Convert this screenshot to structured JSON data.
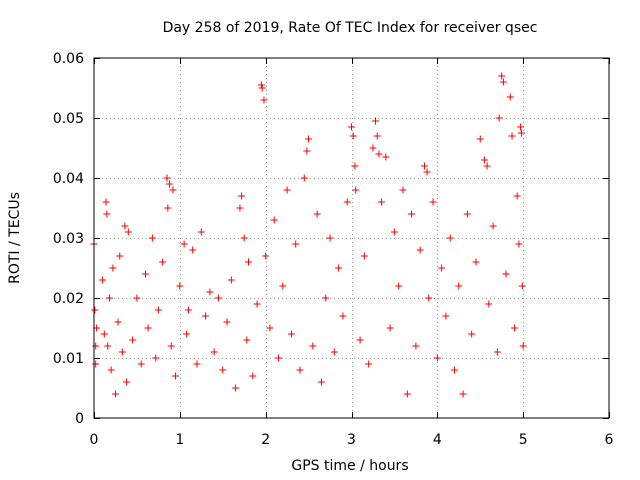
{
  "chart_data": {
    "type": "scatter",
    "title": "Day 258 of 2019, Rate Of TEC Index for receiver qsec",
    "xlabel": "GPS time / hours",
    "ylabel": "ROTI / TECUs",
    "xlim": [
      0,
      6
    ],
    "ylim": [
      0,
      0.06
    ],
    "x_ticks": [
      "0",
      "1",
      "2",
      "3",
      "4",
      "5",
      "6"
    ],
    "y_ticks": [
      "0",
      "0.01",
      "0.02",
      "0.03",
      "0.04",
      "0.05",
      "0.06"
    ],
    "x_tick_values": [
      0,
      1,
      2,
      3,
      4,
      5,
      6
    ],
    "y_tick_values": [
      0,
      0.01,
      0.02,
      0.03,
      0.04,
      0.05,
      0.06
    ],
    "grid": true,
    "marker": "+",
    "series": [
      {
        "name": "ROTI",
        "color": "#ff0000",
        "points": [
          [
            0.0,
            0.029
          ],
          [
            0.01,
            0.018
          ],
          [
            0.02,
            0.012
          ],
          [
            0.02,
            0.009
          ],
          [
            0.03,
            0.015
          ],
          [
            0.1,
            0.023
          ],
          [
            0.12,
            0.014
          ],
          [
            0.14,
            0.036
          ],
          [
            0.15,
            0.034
          ],
          [
            0.16,
            0.012
          ],
          [
            0.18,
            0.02
          ],
          [
            0.2,
            0.008
          ],
          [
            0.22,
            0.025
          ],
          [
            0.25,
            0.004
          ],
          [
            0.28,
            0.016
          ],
          [
            0.3,
            0.027
          ],
          [
            0.33,
            0.011
          ],
          [
            0.36,
            0.032
          ],
          [
            0.38,
            0.006
          ],
          [
            0.4,
            0.031
          ],
          [
            0.45,
            0.013
          ],
          [
            0.5,
            0.02
          ],
          [
            0.55,
            0.009
          ],
          [
            0.6,
            0.024
          ],
          [
            0.63,
            0.015
          ],
          [
            0.68,
            0.03
          ],
          [
            0.72,
            0.01
          ],
          [
            0.75,
            0.018
          ],
          [
            0.8,
            0.026
          ],
          [
            0.85,
            0.04
          ],
          [
            0.86,
            0.035
          ],
          [
            0.88,
            0.039
          ],
          [
            0.9,
            0.012
          ],
          [
            0.92,
            0.038
          ],
          [
            0.95,
            0.007
          ],
          [
            1.0,
            0.022
          ],
          [
            1.05,
            0.029
          ],
          [
            1.08,
            0.014
          ],
          [
            1.1,
            0.018
          ],
          [
            1.15,
            0.028
          ],
          [
            1.2,
            0.009
          ],
          [
            1.25,
            0.031
          ],
          [
            1.3,
            0.017
          ],
          [
            1.35,
            0.021
          ],
          [
            1.4,
            0.011
          ],
          [
            1.45,
            0.02
          ],
          [
            1.5,
            0.008
          ],
          [
            1.55,
            0.016
          ],
          [
            1.6,
            0.023
          ],
          [
            1.65,
            0.005
          ],
          [
            1.7,
            0.035
          ],
          [
            1.72,
            0.037
          ],
          [
            1.75,
            0.03
          ],
          [
            1.78,
            0.013
          ],
          [
            1.8,
            0.026
          ],
          [
            1.85,
            0.007
          ],
          [
            1.9,
            0.019
          ],
          [
            1.95,
            0.0555
          ],
          [
            1.96,
            0.055
          ],
          [
            1.98,
            0.053
          ],
          [
            2.0,
            0.027
          ],
          [
            2.05,
            0.015
          ],
          [
            2.1,
            0.033
          ],
          [
            2.15,
            0.01
          ],
          [
            2.2,
            0.022
          ],
          [
            2.25,
            0.038
          ],
          [
            2.3,
            0.014
          ],
          [
            2.35,
            0.029
          ],
          [
            2.4,
            0.008
          ],
          [
            2.45,
            0.04
          ],
          [
            2.48,
            0.0445
          ],
          [
            2.5,
            0.0465
          ],
          [
            2.55,
            0.012
          ],
          [
            2.6,
            0.034
          ],
          [
            2.65,
            0.006
          ],
          [
            2.7,
            0.02
          ],
          [
            2.75,
            0.03
          ],
          [
            2.8,
            0.011
          ],
          [
            2.85,
            0.025
          ],
          [
            2.9,
            0.017
          ],
          [
            2.95,
            0.036
          ],
          [
            3.0,
            0.0485
          ],
          [
            3.02,
            0.047
          ],
          [
            3.04,
            0.042
          ],
          [
            3.05,
            0.038
          ],
          [
            3.1,
            0.013
          ],
          [
            3.15,
            0.027
          ],
          [
            3.2,
            0.009
          ],
          [
            3.25,
            0.045
          ],
          [
            3.28,
            0.0495
          ],
          [
            3.3,
            0.047
          ],
          [
            3.32,
            0.044
          ],
          [
            3.35,
            0.036
          ],
          [
            3.4,
            0.0435
          ],
          [
            3.45,
            0.015
          ],
          [
            3.5,
            0.031
          ],
          [
            3.55,
            0.022
          ],
          [
            3.6,
            0.038
          ],
          [
            3.65,
            0.004
          ],
          [
            3.7,
            0.034
          ],
          [
            3.75,
            0.012
          ],
          [
            3.8,
            0.028
          ],
          [
            3.85,
            0.042
          ],
          [
            3.88,
            0.041
          ],
          [
            3.9,
            0.02
          ],
          [
            3.95,
            0.036
          ],
          [
            4.0,
            0.01
          ],
          [
            4.05,
            0.025
          ],
          [
            4.1,
            0.017
          ],
          [
            4.15,
            0.03
          ],
          [
            4.2,
            0.008
          ],
          [
            4.25,
            0.022
          ],
          [
            4.3,
            0.004
          ],
          [
            4.35,
            0.034
          ],
          [
            4.4,
            0.014
          ],
          [
            4.45,
            0.026
          ],
          [
            4.5,
            0.0465
          ],
          [
            4.55,
            0.043
          ],
          [
            4.58,
            0.042
          ],
          [
            4.6,
            0.019
          ],
          [
            4.65,
            0.032
          ],
          [
            4.7,
            0.011
          ],
          [
            4.72,
            0.05
          ],
          [
            4.75,
            0.057
          ],
          [
            4.77,
            0.056
          ],
          [
            4.8,
            0.024
          ],
          [
            4.85,
            0.0535
          ],
          [
            4.87,
            0.047
          ],
          [
            4.9,
            0.015
          ],
          [
            4.93,
            0.037
          ],
          [
            4.95,
            0.029
          ],
          [
            4.97,
            0.0485
          ],
          [
            4.98,
            0.0475
          ],
          [
            4.99,
            0.022
          ],
          [
            5.0,
            0.012
          ]
        ]
      }
    ]
  }
}
